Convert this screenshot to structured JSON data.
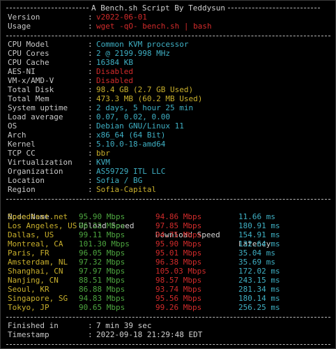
{
  "header": {
    "title": "A Bench.sh Script By Teddysun"
  },
  "intro": [
    {
      "key": "Version",
      "value": "v2022-06-01"
    },
    {
      "key": "Usage",
      "value": "wget -qO- bench.sh | bash"
    }
  ],
  "sysinfo": [
    {
      "key": "CPU Model",
      "value": "Common KVM processor",
      "color": "#3fb0c4"
    },
    {
      "key": "CPU Cores",
      "value": "2 @ 2199.998 MHz",
      "color": "#3fb0c4"
    },
    {
      "key": "CPU Cache",
      "value": "16384 KB",
      "color": "#3fb0c4"
    },
    {
      "key": "AES-NI",
      "value": "Disabled",
      "color": "#d22b2b"
    },
    {
      "key": "VM-x/AMD-V",
      "value": "Disabled",
      "color": "#d22b2b"
    },
    {
      "key": "Total Disk",
      "value": "98.4 GB (2.7 GB Used)",
      "color": "#c9b02c"
    },
    {
      "key": "Total Mem",
      "value": "473.3 MB (60.2 MB Used)",
      "color": "#c9b02c"
    },
    {
      "key": "System uptime",
      "value": "2 days, 5 hour 25 min",
      "color": "#3fb0c4"
    },
    {
      "key": "Load average",
      "value": "0.07, 0.02, 0.00",
      "color": "#3fb0c4"
    },
    {
      "key": "OS",
      "value": "Debian GNU/Linux 11",
      "color": "#3fb0c4"
    },
    {
      "key": "Arch",
      "value": "x86_64 (64 Bit)",
      "color": "#3fb0c4"
    },
    {
      "key": "Kernel",
      "value": "5.10.0-18-amd64",
      "color": "#3fb0c4"
    },
    {
      "key": "TCP CC",
      "value": "bbr",
      "color": "#c9b02c"
    },
    {
      "key": "Virtualization",
      "value": "KVM",
      "color": "#3fb0c4"
    },
    {
      "key": "Organization",
      "value": "AS59729 ITL LLC",
      "color": "#3fb0c4"
    },
    {
      "key": "Location",
      "value": "Sofia / BG",
      "color": "#3fb0c4"
    },
    {
      "key": "Region",
      "value": "Sofia-Capital",
      "color": "#c9b02c"
    }
  ],
  "speedtest": {
    "headers": [
      "Node Name",
      "Upload Speed",
      "Download Speed",
      "Latency"
    ],
    "rows": [
      [
        "Speedtest.net",
        "95.90 Mbps",
        "94.86 Mbps",
        "11.66 ms"
      ],
      [
        "Los Angeles, US",
        "96.23 Mbps",
        "97.85 Mbps",
        "180.91 ms"
      ],
      [
        "Dallas, US",
        "99.11 Mbps",
        "94.75 Mbps",
        "154.91 ms"
      ],
      [
        "Montreal, CA",
        "101.30 Mbps",
        "95.90 Mbps",
        "132.64 ms"
      ],
      [
        "Paris, FR",
        "96.05 Mbps",
        "95.01 Mbps",
        "35.04 ms"
      ],
      [
        "Amsterdam, NL",
        "97.32 Mbps",
        "96.38 Mbps",
        "35.69 ms"
      ],
      [
        "Shanghai, CN",
        "97.97 Mbps",
        "105.03 Mbps",
        "172.02 ms"
      ],
      [
        "Nanjing, CN",
        "88.51 Mbps",
        "98.57 Mbps",
        "243.15 ms"
      ],
      [
        "Seoul, KR",
        "86.88 Mbps",
        "93.74 Mbps",
        "281.34 ms"
      ],
      [
        "Singapore, SG",
        "94.83 Mbps",
        "95.56 Mbps",
        "180.14 ms"
      ],
      [
        "Tokyo, JP",
        "90.65 Mbps",
        "99.26 Mbps",
        "256.25 ms"
      ]
    ]
  },
  "footer": [
    {
      "key": "Finished in",
      "value": "7 min 39 sec"
    },
    {
      "key": "Timestamp",
      "value": "2022-09-18 21:29:48 EDT"
    }
  ],
  "colors": {
    "background": "#000000",
    "node": "#c9b02c",
    "upload": "#4da63f",
    "download": "#d22b2b",
    "latency": "#3fb0c4"
  }
}
